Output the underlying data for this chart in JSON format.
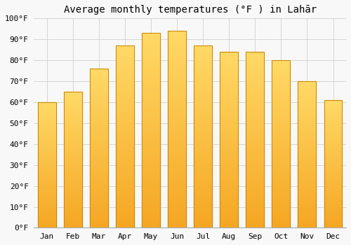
{
  "title": "Average monthly temperatures (°F ) in Lahār",
  "months": [
    "Jan",
    "Feb",
    "Mar",
    "Apr",
    "May",
    "Jun",
    "Jul",
    "Aug",
    "Sep",
    "Oct",
    "Nov",
    "Dec"
  ],
  "values": [
    60,
    65,
    76,
    87,
    93,
    94,
    87,
    84,
    84,
    80,
    70,
    61
  ],
  "bar_color_bottom": "#F5A623",
  "bar_color_top": "#FFD966",
  "bar_edge_color": "#C8860A",
  "ylim": [
    0,
    100
  ],
  "yticks": [
    0,
    10,
    20,
    30,
    40,
    50,
    60,
    70,
    80,
    90,
    100
  ],
  "ytick_labels": [
    "0°F",
    "10°F",
    "20°F",
    "30°F",
    "40°F",
    "50°F",
    "60°F",
    "70°F",
    "80°F",
    "90°F",
    "100°F"
  ],
  "bg_color": "#f8f8f8",
  "grid_color": "#d0d0d0",
  "title_fontsize": 10,
  "tick_fontsize": 8,
  "font_family": "monospace"
}
